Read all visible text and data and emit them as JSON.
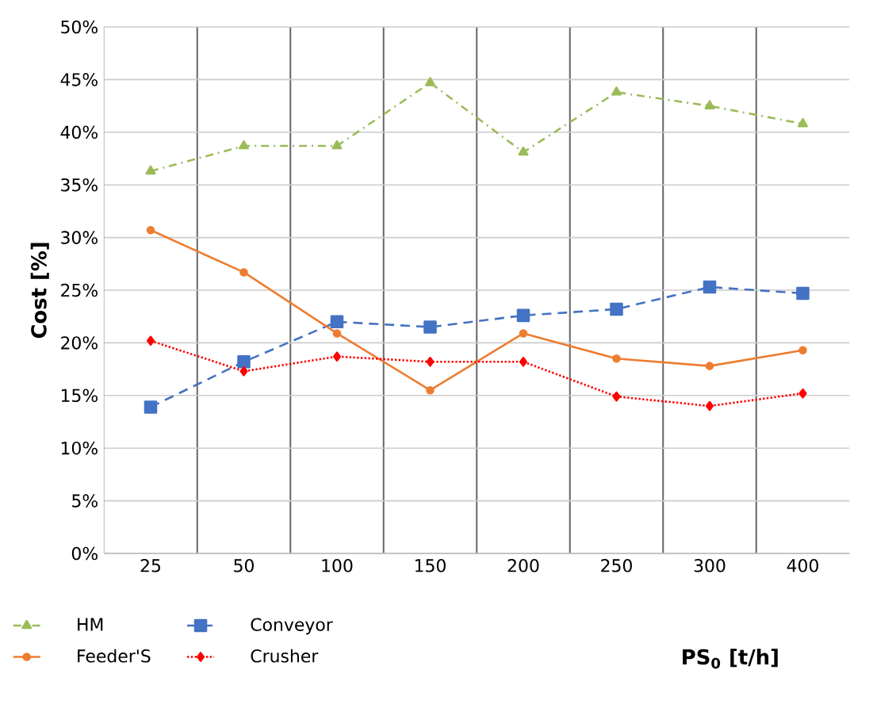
{
  "chart_data": {
    "type": "line",
    "xlabel": "PS$_{0}$ [t/h]",
    "ylabel": "Cost [%]",
    "categories": [
      "25",
      "50",
      "100",
      "150",
      "200",
      "250",
      "300",
      "400"
    ],
    "series": [
      {
        "name": "HM",
        "color": "#9bbb59",
        "marker": "triangle",
        "line_style": "dashdot",
        "values": [
          36.3,
          38.7,
          38.7,
          44.7,
          38.1,
          43.8,
          42.5,
          40.8
        ]
      },
      {
        "name": "Conveyor",
        "color": "#4472c4",
        "marker": "square",
        "line_style": "dashed",
        "values": [
          13.9,
          18.2,
          22.0,
          21.5,
          22.6,
          23.2,
          25.3,
          24.7
        ]
      },
      {
        "name": "Feeder'S",
        "color": "#ed7d31",
        "marker": "circle",
        "line_style": "solid",
        "values": [
          30.7,
          26.7,
          20.9,
          15.5,
          20.9,
          18.5,
          17.8,
          19.3
        ]
      },
      {
        "name": "Crusher",
        "color": "#ff0000",
        "marker": "diamond",
        "line_style": "dotted",
        "values": [
          20.2,
          17.3,
          18.7,
          18.2,
          18.2,
          14.9,
          14.0,
          15.2
        ]
      }
    ],
    "ylim": [
      0,
      50
    ],
    "yticks": [
      {
        "value": 0,
        "label": "0%"
      },
      {
        "value": 5,
        "label": "5%"
      },
      {
        "value": 10,
        "label": "10%"
      },
      {
        "value": 15,
        "label": "15%"
      },
      {
        "value": 20,
        "label": "20%"
      },
      {
        "value": 25,
        "label": "25%"
      },
      {
        "value": 30,
        "label": "30%"
      },
      {
        "value": 35,
        "label": "35%"
      },
      {
        "value": 40,
        "label": "40%"
      },
      {
        "value": 45,
        "label": "45%"
      },
      {
        "value": 50,
        "label": "50%"
      }
    ],
    "grid": true,
    "legend": "bottom left"
  }
}
